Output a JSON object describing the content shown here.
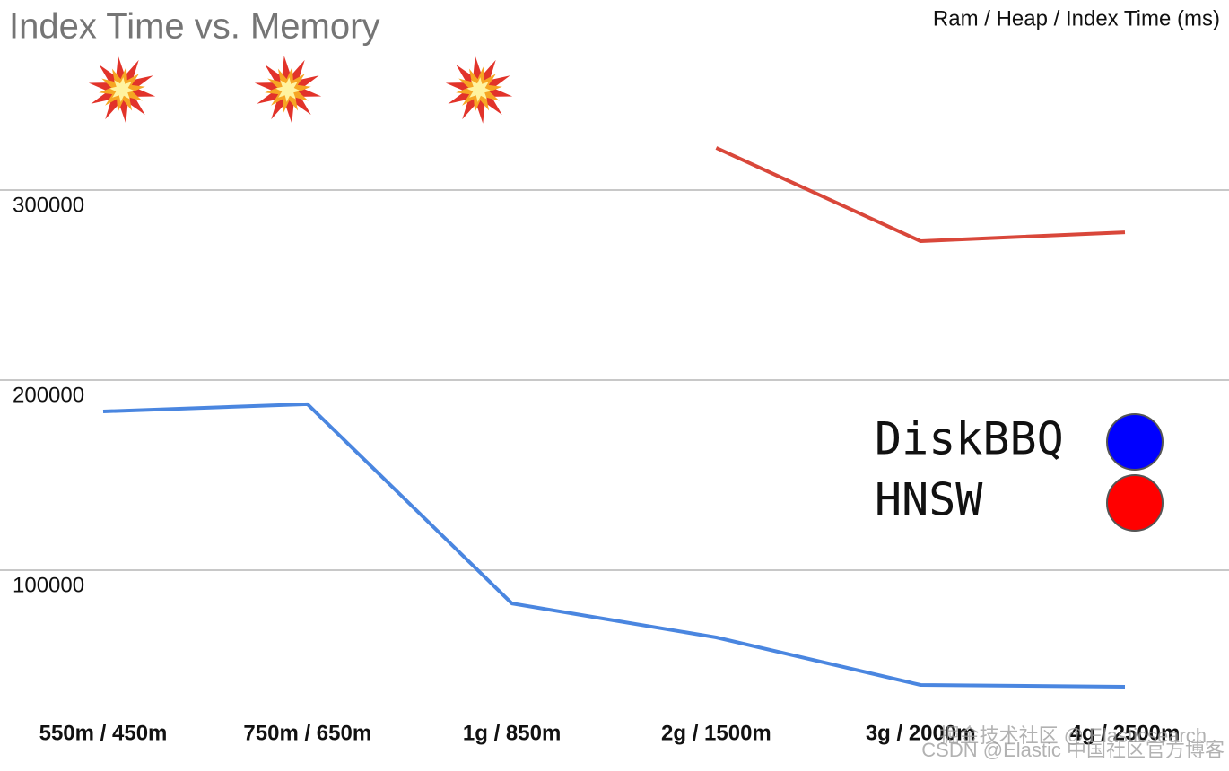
{
  "chart_data": {
    "type": "line",
    "title": "Index Time vs. Memory",
    "y_axis_label": "Ram / Heap / Index Time (ms)",
    "categories": [
      "550m / 450m",
      "750m / 650m",
      "1g / 850m",
      "2g / 1500m",
      "3g / 2000m",
      "4g / 2500m"
    ],
    "series": [
      {
        "name": "DiskBBQ",
        "color": "#4a86e0",
        "legend_color": "#0000ff",
        "values": [
          183500,
          187300,
          82500,
          64600,
          39600,
          38700
        ]
      },
      {
        "name": "HNSW",
        "color": "#d9473a",
        "legend_color": "#ff0000",
        "values": [
          null,
          null,
          null,
          322200,
          273100,
          277800
        ]
      }
    ],
    "ylim": [
      0,
      400000
    ],
    "yticks": [
      100000,
      200000,
      300000
    ],
    "grid": true,
    "legend_position": "right",
    "watermarks": [
      "掘金技术社区 @ Elasticsearch",
      "CSDN @Elastic 中国社区官方博客"
    ]
  }
}
